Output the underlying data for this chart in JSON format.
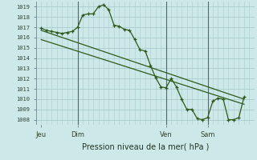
{
  "background_color": "#cce8e8",
  "grid_color": "#aacccc",
  "line_color": "#2d5a1b",
  "title": "Pression niveau de la mer( hPa )",
  "ylim": [
    1007.5,
    1019.5
  ],
  "yticks": [
    1008,
    1009,
    1010,
    1011,
    1012,
    1013,
    1014,
    1015,
    1016,
    1017,
    1018,
    1019
  ],
  "xlim": [
    0,
    42
  ],
  "xtick_labels": [
    "Jeu",
    "Dim",
    "Ven",
    "Sam"
  ],
  "xtick_positions": [
    1,
    8,
    25,
    33
  ],
  "vline_positions": [
    8,
    25,
    33
  ],
  "series1_x": [
    1,
    2,
    3,
    4,
    5,
    6,
    7,
    8,
    9,
    10,
    11,
    12,
    13,
    14,
    15,
    16,
    17,
    18,
    19,
    20,
    21,
    22,
    23,
    24,
    25,
    26,
    27,
    28,
    29,
    30,
    31,
    32,
    33,
    34,
    35,
    36,
    37,
    38,
    39,
    40
  ],
  "series1_y": [
    1016.9,
    1016.7,
    1016.6,
    1016.5,
    1016.4,
    1016.5,
    1016.6,
    1017.0,
    1018.2,
    1018.3,
    1018.3,
    1019.0,
    1019.2,
    1018.7,
    1017.2,
    1017.1,
    1016.8,
    1016.7,
    1015.8,
    1014.8,
    1014.7,
    1013.3,
    1012.1,
    1011.2,
    1011.1,
    1012.0,
    1011.2,
    1010.0,
    1009.0,
    1009.0,
    1008.1,
    1008.0,
    1008.2,
    1009.8,
    1010.1,
    1010.0,
    1008.0,
    1008.0,
    1008.2,
    1010.2
  ],
  "series2_x": [
    1,
    40
  ],
  "series2_y": [
    1016.7,
    1010.0
  ],
  "series3_x": [
    1,
    40
  ],
  "series3_y": [
    1015.8,
    1009.5
  ]
}
